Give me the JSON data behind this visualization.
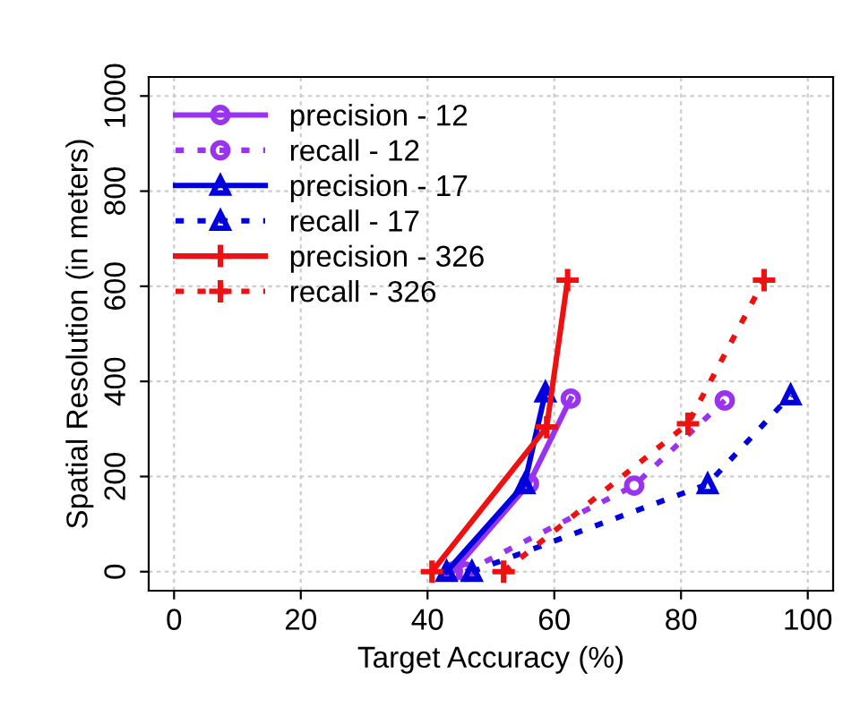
{
  "chart_data": {
    "type": "line",
    "xlabel": "Target Accuracy (%)",
    "ylabel": "Spatial Resolution (in meters)",
    "xlim": [
      -4,
      104
    ],
    "ylim": [
      -40,
      1040
    ],
    "xticks": [
      0,
      20,
      40,
      60,
      80,
      100
    ],
    "yticks": [
      0,
      200,
      400,
      600,
      800,
      1000
    ],
    "grid": true,
    "legend": "top left",
    "series": [
      {
        "name": "precision - 12",
        "color": "#9933ee",
        "marker": "circle",
        "line_style": "solid",
        "x": [
          44,
          56,
          62.6
        ],
        "values": [
          0,
          185,
          364
        ]
      },
      {
        "name": "recall - 12",
        "color": "#9933ee",
        "marker": "circle",
        "line_style": "dotted",
        "x": [
          46,
          72.6,
          86.9
        ],
        "values": [
          0,
          181,
          360
        ]
      },
      {
        "name": "precision - 17",
        "color": "#0000dd",
        "marker": "triangle",
        "line_style": "solid",
        "x": [
          43,
          55.3,
          58.6
        ],
        "values": [
          0,
          184,
          377
        ]
      },
      {
        "name": "recall - 17",
        "color": "#0000dd",
        "marker": "triangle",
        "line_style": "dotted",
        "x": [
          47,
          84.2,
          97.3
        ],
        "values": [
          0,
          184,
          371
        ]
      },
      {
        "name": "precision - 326",
        "color": "#ee1111",
        "marker": "cross",
        "line_style": "solid",
        "x": [
          40.7,
          58.8,
          62.1
        ],
        "values": [
          0,
          304,
          613
        ]
      },
      {
        "name": "recall - 326",
        "color": "#ee1111",
        "marker": "cross",
        "line_style": "dotted",
        "x": [
          52,
          81.1,
          93.1
        ],
        "values": [
          0,
          311,
          613
        ]
      }
    ]
  }
}
